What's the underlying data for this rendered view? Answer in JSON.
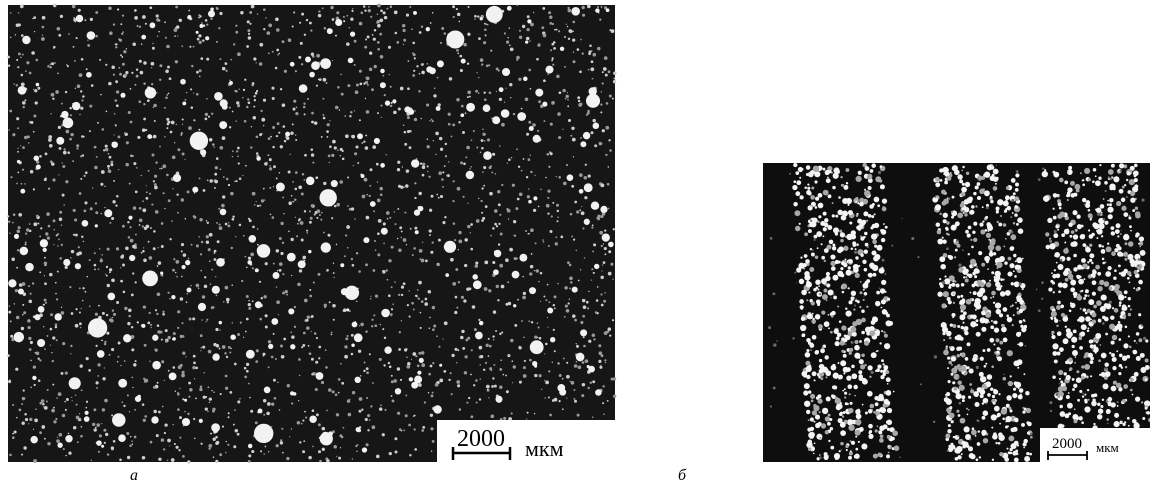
{
  "panels": [
    {
      "label": "а",
      "scale_bar": {
        "value": 2000,
        "unit": "мкм"
      }
    },
    {
      "label": "б",
      "scale_bar": {
        "value": 2000,
        "unit": "мкм"
      }
    }
  ]
}
